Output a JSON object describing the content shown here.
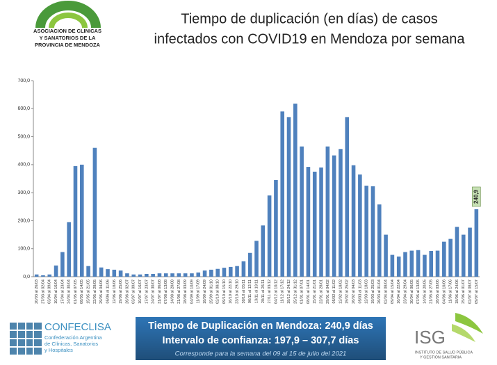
{
  "header": {
    "title_lines": [
      "Tiempo de duplicación (en días) de casos",
      "infectados con COVID19 en Mendoza por semana"
    ],
    "logo_lines": [
      "ASOCIACION DE CLINICAS",
      "Y SANATORIOS DE LA",
      "PROVINCIA DE MENDOZA"
    ]
  },
  "chart_data": {
    "type": "bar",
    "color": "#4f81bd",
    "label_color": "#c6e0b4",
    "categories": [
      "20/03 al 26/03",
      "27/03 al 02/04",
      "03/04 al 09/04",
      "10/04 al 16/04",
      "17/04 al 23/04",
      "24/04 al 30/04",
      "01/05 al 07/05",
      "08/05 al 14/05",
      "15/05 al 21/05",
      "22/05 al 28/05",
      "29/05 al 04/06",
      "05/06 al 11/06",
      "12/06 al 18/06",
      "19/06 al 25/06",
      "26/06 al 02/07",
      "03/07 al 09/07",
      "10/07 al 16/07",
      "17/07 al 23/07",
      "24/07 al 30/07",
      "31/07 al 06/08",
      "07/08 al 13/08",
      "14/08 al 20/08",
      "21/08 al 27/08",
      "28/08 al 03/09",
      "04/09 al 10/09",
      "11/09 al 17/09",
      "18/09 al 24/09",
      "25/09 al 01/10",
      "02/10 al 08/10",
      "09/10 al 15/10",
      "16/10 al 22/10",
      "23/10 al 29/10",
      "30/10 al 05/11",
      "06/11 al 12/11",
      "13/11 al 19/11",
      "20/11 al 26/11",
      "27/11 al 03/12",
      "04/12 al 10/12",
      "11/12 al 17/12",
      "18/12 al 24/12",
      "25/12 al 31/12",
      "01/01 al 07/01",
      "08/01 al 14/01",
      "15/01 al 21/01",
      "22/01 al 28/01",
      "29/01 al 04/02",
      "05/02 al 11/02",
      "12/02 al 18/02",
      "19/02 al 25/02",
      "26/02 al 04/03",
      "05/03 al 11/03",
      "12/03 al 18/03",
      "19/03 al 25/03",
      "26/03 al 01/04",
      "02/04 al 08/04",
      "09/04 al 15/04",
      "16/04 al 22/04",
      "23/04 al 29/04",
      "30/04 al 06/05",
      "07/05 al 13/05",
      "14/05 al 20/05",
      "21/05 al 27/05",
      "28/05 al 03/06",
      "04/06 al 10/06",
      "11/06 al 17/06",
      "18/06 al 24/06",
      "25/06 al 01/07",
      "02/07 al 08/07",
      "09/07 al 15/07"
    ],
    "values": [
      8,
      5,
      8,
      40,
      88,
      195,
      395,
      400,
      38,
      460,
      33,
      27,
      25,
      22,
      12,
      8,
      8,
      10,
      10,
      12,
      12,
      12,
      12,
      12,
      12,
      15,
      22,
      25,
      28,
      32,
      35,
      38,
      55,
      85,
      128,
      183,
      290,
      345,
      590,
      570,
      618,
      465,
      392,
      375,
      390,
      465,
      433,
      456,
      570,
      398,
      365,
      325,
      323,
      258,
      150,
      78,
      72,
      88,
      93,
      95,
      78,
      92,
      93,
      125,
      135,
      178,
      150,
      175,
      240.9
    ],
    "value_labels": [
      null,
      null,
      null,
      null,
      null,
      null,
      null,
      null,
      null,
      null,
      null,
      null,
      null,
      null,
      null,
      null,
      null,
      null,
      null,
      null,
      null,
      null,
      null,
      null,
      null,
      null,
      null,
      null,
      null,
      null,
      null,
      null,
      null,
      null,
      null,
      null,
      null,
      null,
      null,
      null,
      null,
      null,
      null,
      null,
      null,
      null,
      null,
      null,
      null,
      null,
      null,
      null,
      null,
      null,
      null,
      null,
      null,
      null,
      null,
      null,
      null,
      null,
      null,
      null,
      null,
      null,
      null,
      null,
      "240,9"
    ],
    "ylim": [
      0,
      700
    ],
    "yticks": [
      {
        "value": 0,
        "label": "0,0"
      },
      {
        "value": 100,
        "label": "100,0"
      },
      {
        "value": 200,
        "label": "200,0"
      },
      {
        "value": 300,
        "label": "300,0"
      },
      {
        "value": 400,
        "label": "400,0"
      },
      {
        "value": 500,
        "label": "500,0"
      },
      {
        "value": 600,
        "label": "600,0"
      },
      {
        "value": 700,
        "label": "700,0"
      }
    ]
  },
  "footer": {
    "confeclisa": "CONFECLISA",
    "confeclisa_lines": [
      "Confederación Argentina",
      "de Clínicas, Sanatorios",
      "y Hospitales"
    ],
    "box_lines": [
      "Tiempo de Duplicación en Mendoza: 240,9 días",
      "Intervalo de confianza: 197,9 – 307,7 días"
    ],
    "box_note": "Corresponde para la semana del  09 al 15 de julio del 2021",
    "isg": "ISG",
    "isg_lines": [
      "INSTITUTO DE SALUD PÚBLICA",
      "Y GESTIÓN SANITARIA"
    ]
  }
}
